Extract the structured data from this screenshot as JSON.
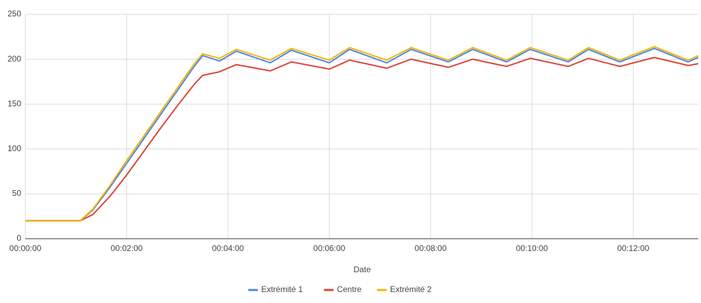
{
  "chart_data": {
    "type": "line",
    "x_label": "Date",
    "x": [
      0,
      60,
      65,
      80,
      100,
      120,
      140,
      160,
      180,
      200,
      210,
      230,
      250,
      290,
      315,
      360,
      384,
      428,
      457,
      501,
      530,
      570,
      598,
      643,
      667,
      704,
      745,
      785,
      797
    ],
    "series": [
      {
        "name": "Extrémité 1",
        "color": "#4a86e8",
        "values": [
          20,
          20,
          20,
          32,
          57,
          84,
          111,
          138,
          165,
          192,
          204,
          198,
          209,
          196,
          210,
          196,
          211,
          196,
          211,
          197,
          211,
          197,
          211,
          197,
          211,
          197,
          212,
          197,
          202
        ]
      },
      {
        "name": "Centre",
        "color": "#db4437",
        "values": [
          20,
          20,
          20,
          27,
          47,
          71,
          97,
          123,
          148,
          172,
          182,
          186,
          194,
          187,
          197,
          189,
          199,
          190,
          200,
          191,
          200,
          192,
          201,
          192,
          201,
          192,
          202,
          193,
          195
        ]
      },
      {
        "name": "Extrémité 2",
        "color": "#f4b400",
        "values": [
          20,
          20,
          20,
          33,
          59,
          87,
          114,
          141,
          168,
          195,
          206,
          201,
          211,
          199,
          212,
          199,
          213,
          199,
          213,
          199,
          213,
          199,
          213,
          199,
          213,
          199,
          214,
          199,
          204
        ]
      }
    ],
    "xlim": [
      0,
      797
    ],
    "xticks": [
      {
        "value": 0,
        "label": "00:00:00"
      },
      {
        "value": 120,
        "label": "00:02:00"
      },
      {
        "value": 240,
        "label": "00:04:00"
      },
      {
        "value": 360,
        "label": "00:06:00"
      },
      {
        "value": 480,
        "label": "00:08:00"
      },
      {
        "value": 600,
        "label": "00:10:00"
      },
      {
        "value": 720,
        "label": "00:12:00"
      }
    ],
    "ylim": [
      0,
      250
    ],
    "yticks": [
      0,
      50,
      100,
      150,
      200,
      250
    ],
    "grid": true,
    "legend": "bottom"
  }
}
